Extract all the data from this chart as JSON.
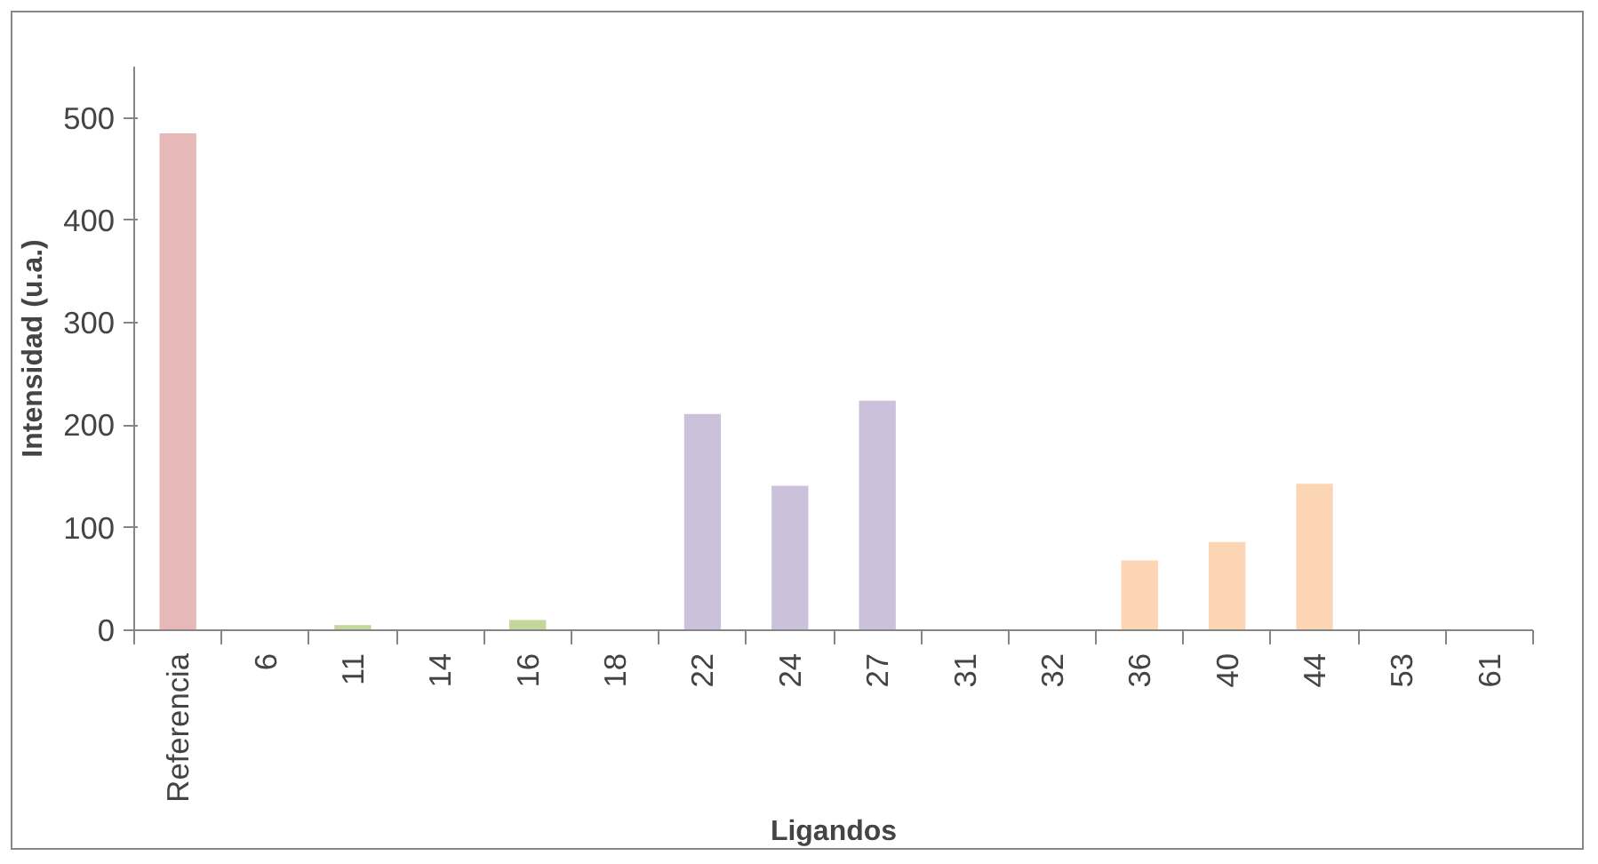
{
  "chart_data": {
    "type": "bar",
    "xlabel": "Ligandos",
    "ylabel": "Intensidad (u.a.)",
    "categories": [
      "Referencia",
      "6",
      "11",
      "14",
      "16",
      "18",
      "22",
      "24",
      "27",
      "31",
      "32",
      "36",
      "40",
      "44",
      "53",
      "61"
    ],
    "values": [
      485,
      0,
      5,
      0,
      10,
      0,
      211,
      141,
      224,
      0,
      0,
      68,
      86,
      143,
      0,
      0
    ],
    "colors": [
      "#e6b9b8",
      "#c3d69b",
      "#c3d69b",
      "#c3d69b",
      "#c3d69b",
      "#c3d69b",
      "#ccc1da",
      "#ccc1da",
      "#ccc1da",
      "#ccc1da",
      "#ccc1da",
      "#fcd5b5",
      "#fcd5b5",
      "#fcd5b5",
      "#fcd5b5",
      "#fcd5b5"
    ],
    "ylim": [
      0,
      550
    ],
    "yticks": [
      0,
      100,
      200,
      300,
      400,
      500
    ],
    "grid": false
  }
}
